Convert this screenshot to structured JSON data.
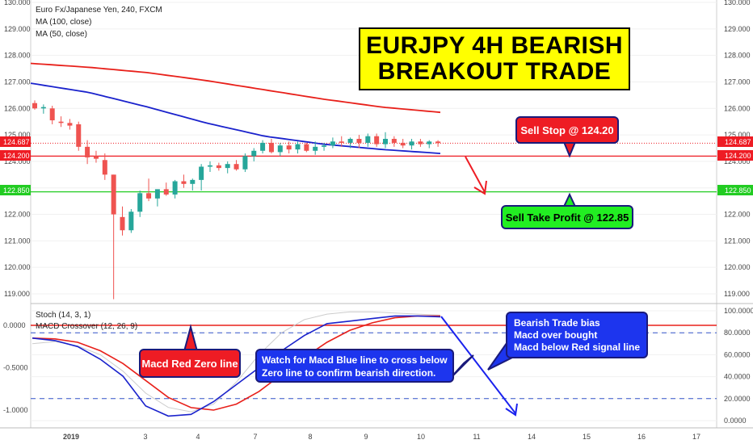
{
  "chart_data": {
    "type": "candlestick",
    "symbol_line": "Euro Fx/Japanese Yen, 240, FXCM",
    "indicators": [
      "MA (100, close)",
      "MA (50, close)"
    ],
    "price_axis": {
      "ticks": [
        "130.000",
        "129.000",
        "128.000",
        "127.000",
        "126.000",
        "125.000",
        "124.000",
        "123.000",
        "122.000",
        "121.000",
        "120.000",
        "119.000"
      ],
      "range": [
        118.6,
        130.0
      ]
    },
    "price_badges": {
      "current": "124.687",
      "stop": "124.200",
      "target": "122.850",
      "current_color": "#ee1c24",
      "stop_color": "#ee1c24",
      "target_color": "#22cc22"
    },
    "levels": {
      "current": 124.687,
      "stop": 124.2,
      "target": 122.85
    },
    "candles": [
      {
        "o": 126.2,
        "h": 126.3,
        "l": 125.95,
        "c": 126.0
      },
      {
        "o": 126.0,
        "h": 126.15,
        "l": 125.8,
        "c": 126.05
      },
      {
        "o": 126.0,
        "h": 126.1,
        "l": 125.4,
        "c": 125.55
      },
      {
        "o": 125.5,
        "h": 125.7,
        "l": 125.3,
        "c": 125.45
      },
      {
        "o": 125.45,
        "h": 125.6,
        "l": 125.2,
        "c": 125.35
      },
      {
        "o": 125.4,
        "h": 125.5,
        "l": 124.4,
        "c": 124.55
      },
      {
        "o": 124.55,
        "h": 124.8,
        "l": 123.9,
        "c": 124.15
      },
      {
        "o": 124.2,
        "h": 124.4,
        "l": 123.95,
        "c": 124.1
      },
      {
        "o": 124.05,
        "h": 124.3,
        "l": 123.3,
        "c": 123.5
      },
      {
        "o": 123.5,
        "h": 123.5,
        "l": 118.8,
        "c": 122.0
      },
      {
        "o": 121.9,
        "h": 122.3,
        "l": 121.2,
        "c": 121.4
      },
      {
        "o": 121.4,
        "h": 122.2,
        "l": 121.3,
        "c": 122.1
      },
      {
        "o": 122.1,
        "h": 122.9,
        "l": 121.9,
        "c": 122.8
      },
      {
        "o": 122.8,
        "h": 123.35,
        "l": 122.5,
        "c": 122.6
      },
      {
        "o": 122.6,
        "h": 122.9,
        "l": 122.3,
        "c": 122.95
      },
      {
        "o": 122.95,
        "h": 123.2,
        "l": 122.7,
        "c": 122.75
      },
      {
        "o": 122.75,
        "h": 123.3,
        "l": 122.6,
        "c": 123.25
      },
      {
        "o": 123.25,
        "h": 123.5,
        "l": 123.0,
        "c": 123.15
      },
      {
        "o": 123.15,
        "h": 123.35,
        "l": 122.9,
        "c": 123.3
      },
      {
        "o": 123.3,
        "h": 123.9,
        "l": 122.9,
        "c": 123.8
      },
      {
        "o": 123.8,
        "h": 124.0,
        "l": 123.6,
        "c": 123.85
      },
      {
        "o": 123.85,
        "h": 123.95,
        "l": 123.65,
        "c": 123.75
      },
      {
        "o": 123.75,
        "h": 124.0,
        "l": 123.55,
        "c": 123.9
      },
      {
        "o": 123.9,
        "h": 124.05,
        "l": 123.65,
        "c": 123.7
      },
      {
        "o": 123.7,
        "h": 124.3,
        "l": 123.6,
        "c": 124.2
      },
      {
        "o": 124.2,
        "h": 124.5,
        "l": 124.0,
        "c": 124.4
      },
      {
        "o": 124.4,
        "h": 124.8,
        "l": 124.3,
        "c": 124.7
      },
      {
        "o": 124.7,
        "h": 124.85,
        "l": 124.3,
        "c": 124.35
      },
      {
        "o": 124.35,
        "h": 124.7,
        "l": 124.2,
        "c": 124.6
      },
      {
        "o": 124.6,
        "h": 124.75,
        "l": 124.3,
        "c": 124.45
      },
      {
        "o": 124.45,
        "h": 124.75,
        "l": 124.3,
        "c": 124.65
      },
      {
        "o": 124.65,
        "h": 124.7,
        "l": 124.35,
        "c": 124.4
      },
      {
        "o": 124.4,
        "h": 124.75,
        "l": 124.25,
        "c": 124.55
      },
      {
        "o": 124.55,
        "h": 124.7,
        "l": 124.4,
        "c": 124.6
      },
      {
        "o": 124.6,
        "h": 124.9,
        "l": 124.5,
        "c": 124.75
      },
      {
        "o": 124.75,
        "h": 124.95,
        "l": 124.55,
        "c": 124.7
      },
      {
        "o": 124.7,
        "h": 124.9,
        "l": 124.5,
        "c": 124.85
      },
      {
        "o": 124.85,
        "h": 125.0,
        "l": 124.5,
        "c": 124.7
      },
      {
        "o": 124.7,
        "h": 125.05,
        "l": 124.55,
        "c": 124.95
      },
      {
        "o": 124.95,
        "h": 125.05,
        "l": 124.55,
        "c": 124.65
      },
      {
        "o": 124.65,
        "h": 125.1,
        "l": 124.5,
        "c": 124.85
      },
      {
        "o": 124.85,
        "h": 124.95,
        "l": 124.55,
        "c": 124.7
      },
      {
        "o": 124.7,
        "h": 124.85,
        "l": 124.5,
        "c": 124.6
      },
      {
        "o": 124.6,
        "h": 124.85,
        "l": 124.45,
        "c": 124.75
      },
      {
        "o": 124.75,
        "h": 124.85,
        "l": 124.55,
        "c": 124.65
      },
      {
        "o": 124.65,
        "h": 124.8,
        "l": 124.5,
        "c": 124.75
      },
      {
        "o": 124.75,
        "h": 124.8,
        "l": 124.55,
        "c": 124.69
      }
    ],
    "ma100": [
      127.7,
      127.55,
      127.35,
      127.05,
      126.7,
      126.35,
      126.05,
      125.85
    ],
    "ma50": [
      126.95,
      126.6,
      126.05,
      125.45,
      124.95,
      124.65,
      124.45,
      124.3
    ],
    "oscillator": {
      "legend_line1": "Stoch (14, 3, 1)",
      "legend_line2": "MACD Crossover (12, 26, 9)",
      "left_ticks": [
        "0.0000",
        "-0.5000",
        "-1.0000"
      ],
      "right_ticks": [
        "100.0000",
        "80.0000",
        "60.0000",
        "40.0000",
        "20.0000",
        "0.0000"
      ],
      "macd_blue": [
        -0.15,
        -0.18,
        -0.25,
        -0.4,
        -0.6,
        -0.95,
        -1.07,
        -1.05,
        -0.9,
        -0.7,
        -0.5,
        -0.3,
        -0.12,
        0.02,
        0.05,
        0.08,
        0.11,
        0.11,
        0.1
      ],
      "signal_red": [
        -0.15,
        -0.16,
        -0.2,
        -0.3,
        -0.45,
        -0.65,
        -0.85,
        -0.97,
        -1.0,
        -0.93,
        -0.78,
        -0.58,
        -0.38,
        -0.2,
        -0.06,
        0.03,
        0.09,
        0.11,
        0.11
      ],
      "stoch": [
        70,
        72,
        68,
        60,
        45,
        25,
        12,
        8,
        15,
        35,
        60,
        80,
        92,
        97,
        99,
        99,
        98,
        97,
        96
      ],
      "dashed_levels": [
        80,
        20
      ]
    },
    "x_axis": {
      "labels": [
        "2019",
        "3",
        "4",
        "7",
        "8",
        "9",
        "10",
        "11",
        "14",
        "15",
        "16",
        "17"
      ]
    },
    "colors": {
      "up": "#26a69a",
      "down": "#ef5350",
      "ma100": "#e8201a",
      "ma50": "#1a22cc",
      "macd": "#1a22cc",
      "signal": "#e8201a",
      "stoch": "#cccccc",
      "zero_line": "#e8201a",
      "dashed": "#3355cc"
    }
  },
  "annotations": {
    "banner_line1": "EURJPY 4H BEARISH",
    "banner_line2": "BREAKOUT TRADE",
    "sell_stop": "Sell Stop @ 124.20",
    "take_profit": "Sell Take Profit @ 122.85",
    "macd_zero": "Macd Red Zero line",
    "watch_line1": "Watch for Macd Blue line to cross below",
    "watch_line2": "Zero line to confirm bearish direction.",
    "bias_line1": "Bearish Trade bias",
    "bias_line2": "Macd over bought",
    "bias_line3": "Macd below Red signal line"
  }
}
